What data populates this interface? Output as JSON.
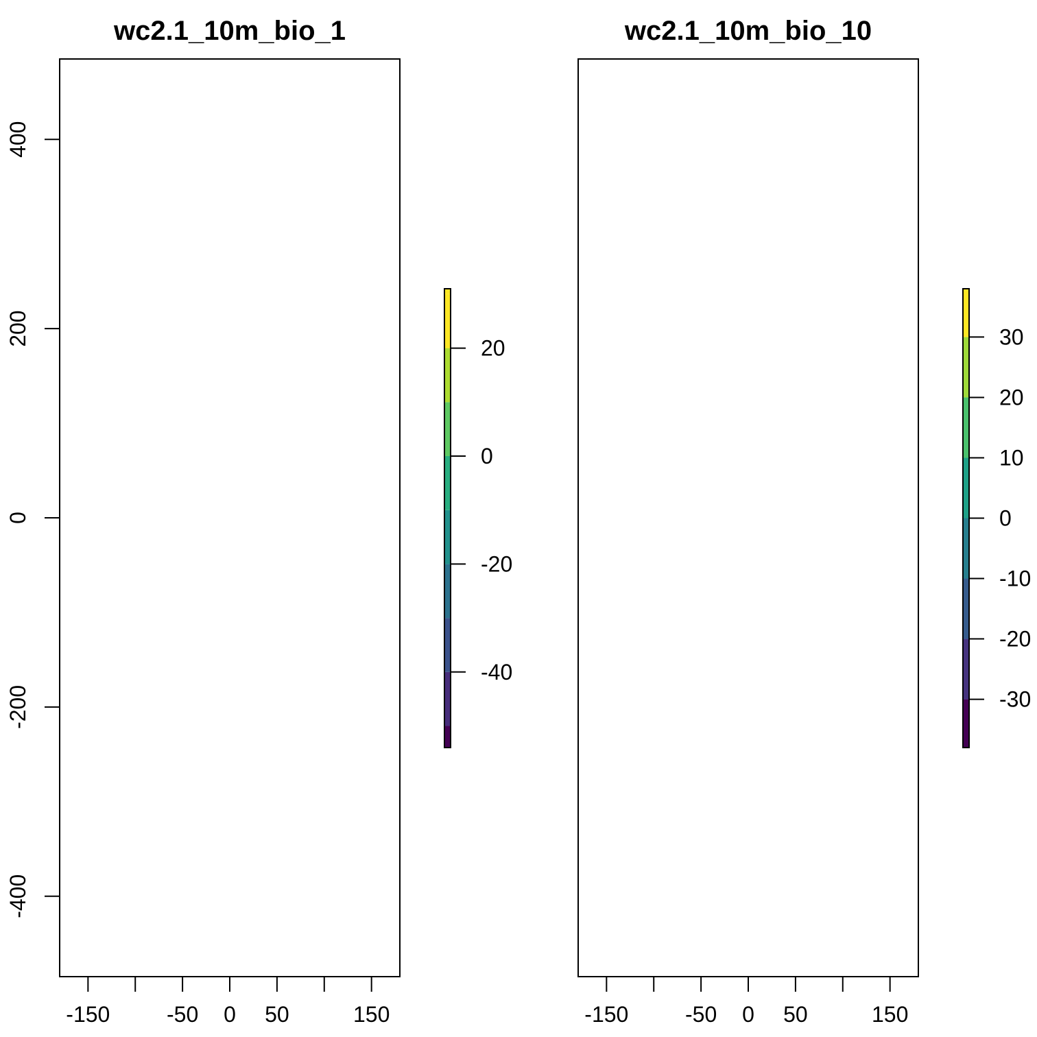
{
  "figure": {
    "panels": [
      {
        "title": "wc2.1_10m_bio_1",
        "x_ticks": [
          {
            "value": -150,
            "label": "-150"
          },
          {
            "value": -100,
            "label": ""
          },
          {
            "value": -50,
            "label": "-50"
          },
          {
            "value": 0,
            "label": "0"
          },
          {
            "value": 50,
            "label": "50"
          },
          {
            "value": 100,
            "label": ""
          },
          {
            "value": 150,
            "label": "150"
          }
        ],
        "y_ticks": [
          {
            "value": 400,
            "label": "400"
          },
          {
            "value": 200,
            "label": "200"
          },
          {
            "value": 0,
            "label": "0"
          },
          {
            "value": -200,
            "label": "-200"
          },
          {
            "value": -400,
            "label": "-400"
          }
        ],
        "show_y_axis": true,
        "legend": {
          "min": -54,
          "max": 31,
          "breaks": [
            -54,
            -50,
            -40,
            -30,
            -20,
            -10,
            0,
            10,
            20,
            30,
            31
          ],
          "colors": [
            "#440154",
            "#472d7b",
            "#3b528b",
            "#2c728e",
            "#21918c",
            "#28ae80",
            "#5ec962",
            "#addc30",
            "#fde725",
            "#fde725"
          ],
          "ticks": [
            {
              "value": 20,
              "label": "20"
            },
            {
              "value": 0,
              "label": "0"
            },
            {
              "value": -20,
              "label": "-20"
            },
            {
              "value": -40,
              "label": "-40"
            }
          ]
        }
      },
      {
        "title": "wc2.1_10m_bio_10",
        "x_ticks": [
          {
            "value": -150,
            "label": "-150"
          },
          {
            "value": -100,
            "label": ""
          },
          {
            "value": -50,
            "label": "-50"
          },
          {
            "value": 0,
            "label": "0"
          },
          {
            "value": 50,
            "label": "50"
          },
          {
            "value": 100,
            "label": ""
          },
          {
            "value": 150,
            "label": "150"
          }
        ],
        "y_ticks": [],
        "show_y_axis": false,
        "legend": {
          "min": -38,
          "max": 38,
          "breaks": [
            -38,
            -30,
            -20,
            -10,
            0,
            10,
            20,
            30,
            38
          ],
          "colors": [
            "#440154",
            "#46337e",
            "#365c8d",
            "#277f8e",
            "#1fa187",
            "#4ac16d",
            "#9fda3a",
            "#fde725"
          ],
          "ticks": [
            {
              "value": 30,
              "label": "30"
            },
            {
              "value": 20,
              "label": "20"
            },
            {
              "value": 10,
              "label": "10"
            },
            {
              "value": 0,
              "label": "0"
            },
            {
              "value": -10,
              "label": "-10"
            },
            {
              "value": -20,
              "label": "-20"
            },
            {
              "value": -30,
              "label": "-30"
            }
          ]
        }
      }
    ]
  }
}
